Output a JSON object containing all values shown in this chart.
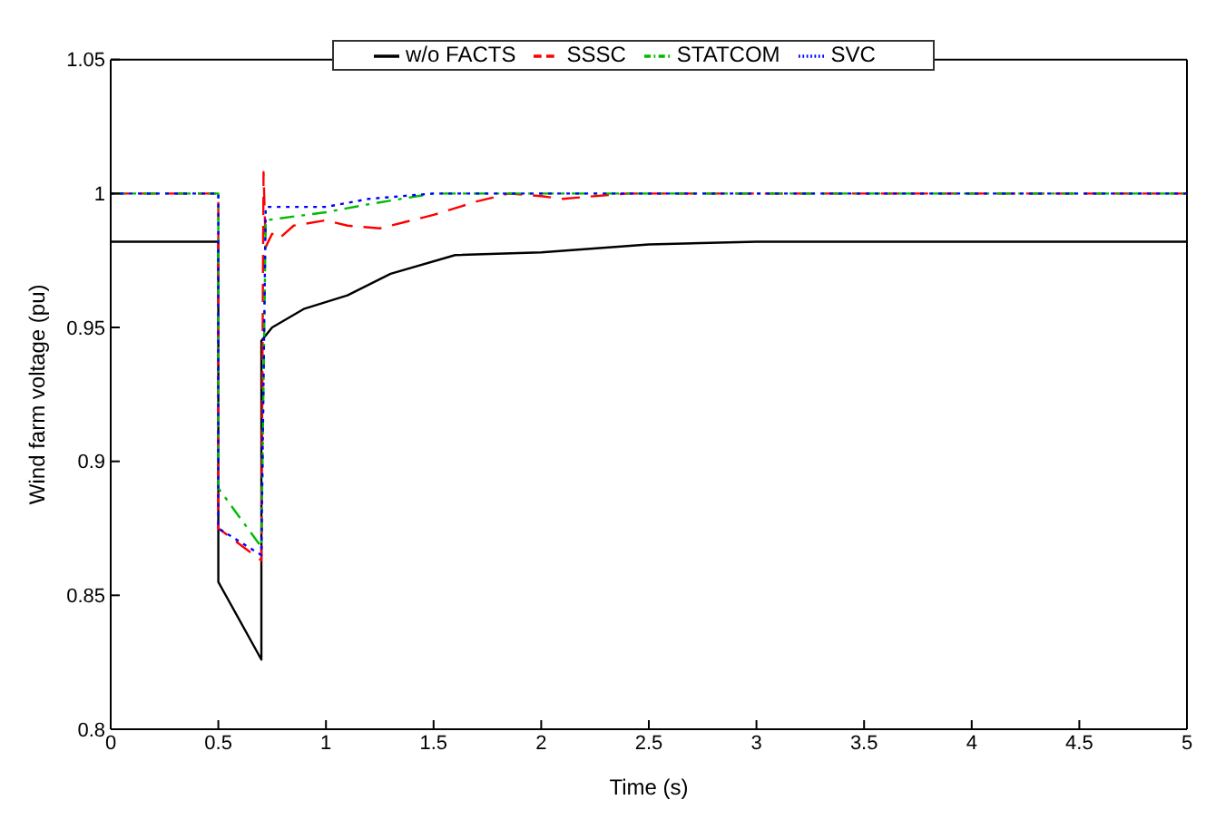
{
  "chart_data": {
    "type": "line",
    "xlabel": "Time (s)",
    "ylabel": "Wind farm voltage (pu)",
    "xlim": [
      0,
      5
    ],
    "ylim": [
      0.8,
      1.05
    ],
    "xticks": [
      0,
      0.5,
      1,
      1.5,
      2,
      2.5,
      3,
      3.5,
      4,
      4.5,
      5
    ],
    "yticks": [
      0.8,
      0.85,
      0.9,
      0.95,
      1,
      1.05
    ],
    "legend": "top",
    "marker": "none",
    "series": [
      {
        "name": "w/o FACTS",
        "color": "#000000",
        "line_style": "solid",
        "x": [
          0,
          0.5,
          0.5,
          0.7,
          0.7,
          0.75,
          0.9,
          1.1,
          1.3,
          1.6,
          2,
          2.5,
          3,
          5
        ],
        "values": [
          0.982,
          0.982,
          0.855,
          0.826,
          0.945,
          0.95,
          0.957,
          0.962,
          0.97,
          0.977,
          0.978,
          0.981,
          0.982,
          0.982
        ]
      },
      {
        "name": "SSSC",
        "color": "#ff0000",
        "line_style": "dashed",
        "x": [
          0,
          0.5,
          0.5,
          0.7,
          0.71,
          0.72,
          0.75,
          0.78,
          0.85,
          1,
          1.1,
          1.25,
          1.5,
          1.7,
          1.85,
          2,
          2.1,
          2.4,
          5
        ],
        "values": [
          1,
          1,
          0.875,
          0.863,
          1.008,
          0.98,
          0.985,
          0.983,
          0.988,
          0.99,
          0.988,
          0.987,
          0.992,
          0.997,
          1,
          0.999,
          0.998,
          1,
          1
        ]
      },
      {
        "name": "STATCOM",
        "color": "#00bb00",
        "line_style": "dashdot",
        "x": [
          0,
          0.5,
          0.5,
          0.7,
          0.72,
          1,
          1.2,
          1.5,
          5
        ],
        "values": [
          1,
          1,
          0.89,
          0.868,
          0.99,
          0.993,
          0.996,
          1,
          1
        ]
      },
      {
        "name": "SVC",
        "color": "#0000ff",
        "line_style": "dotted",
        "x": [
          0,
          0.5,
          0.5,
          0.7,
          0.72,
          1,
          1.2,
          1.5,
          5
        ],
        "values": [
          1,
          1,
          0.875,
          0.865,
          0.995,
          0.995,
          0.998,
          1,
          1
        ]
      }
    ]
  }
}
